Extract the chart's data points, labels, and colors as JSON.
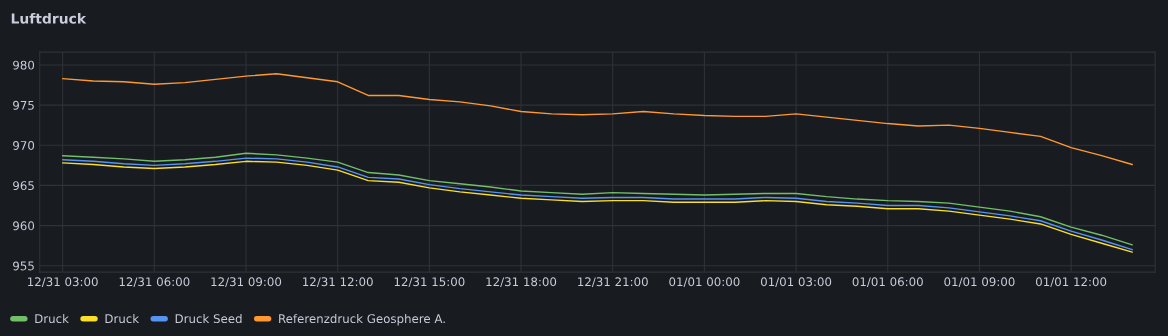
{
  "chart_data": {
    "type": "line",
    "title": "Luftdruck",
    "categories": [
      "12/31 03:00",
      null,
      null,
      "12/31 06:00",
      null,
      null,
      "12/31 09:00",
      null,
      null,
      "12/31 12:00",
      null,
      null,
      "12/31 15:00",
      null,
      null,
      "12/31 18:00",
      null,
      null,
      "12/31 21:00",
      null,
      null,
      "01/01 00:00",
      null,
      null,
      "01/01 03:00",
      null,
      null,
      "01/01 06:00",
      null,
      null,
      "01/01 09:00",
      null,
      null,
      "01/01 12:00",
      null,
      null
    ],
    "ylim": [
      954.2,
      981.6
    ],
    "yticks": [
      955,
      960,
      965,
      970,
      975,
      980
    ],
    "grid": true,
    "legend": "bottom left",
    "marker": "none",
    "line_style": "solid",
    "series": [
      {
        "name": "Druck",
        "color": "#73bf69",
        "values": [
          968.7,
          968.5,
          968.3,
          968.0,
          968.2,
          968.5,
          969.0,
          968.8,
          968.4,
          967.9,
          966.6,
          966.3,
          965.6,
          965.2,
          964.8,
          964.3,
          964.1,
          963.9,
          964.1,
          964.0,
          963.9,
          963.8,
          963.9,
          964.0,
          964.0,
          963.6,
          963.3,
          963.1,
          963.0,
          962.8,
          962.3,
          961.8,
          961.1,
          959.8,
          958.8,
          957.6
        ]
      },
      {
        "name": "Druck",
        "color": "#fade2a",
        "values": [
          967.8,
          967.6,
          967.3,
          967.1,
          967.3,
          967.6,
          968.0,
          967.9,
          967.5,
          966.9,
          965.6,
          965.4,
          964.7,
          964.2,
          963.8,
          963.4,
          963.2,
          963.0,
          963.1,
          963.1,
          962.9,
          962.9,
          962.9,
          963.1,
          963.0,
          962.6,
          962.4,
          962.1,
          962.1,
          961.8,
          961.3,
          960.8,
          960.2,
          958.9,
          957.8,
          956.7
        ]
      },
      {
        "name": "Druck Seed",
        "color": "#5794f2",
        "values": [
          968.2,
          968.0,
          967.7,
          967.5,
          967.7,
          968.0,
          968.4,
          968.3,
          967.9,
          967.3,
          966.0,
          965.8,
          965.1,
          964.6,
          964.2,
          963.8,
          963.6,
          963.4,
          963.5,
          963.5,
          963.3,
          963.3,
          963.3,
          963.5,
          963.4,
          963.0,
          962.8,
          962.5,
          962.5,
          962.2,
          961.7,
          961.2,
          960.6,
          959.3,
          958.2,
          957.0
        ]
      },
      {
        "name": "Referenzdruck Geosphere A.",
        "color": "#ff9830",
        "values": [
          978.3,
          978.0,
          977.9,
          977.6,
          977.8,
          978.2,
          978.6,
          978.9,
          978.4,
          977.9,
          976.2,
          976.2,
          975.7,
          975.4,
          974.9,
          974.2,
          973.9,
          973.8,
          973.9,
          974.2,
          973.9,
          973.7,
          973.6,
          973.6,
          973.9,
          973.5,
          973.1,
          972.7,
          972.4,
          972.5,
          972.1,
          971.6,
          971.1,
          969.7,
          968.7,
          967.6
        ]
      }
    ]
  }
}
